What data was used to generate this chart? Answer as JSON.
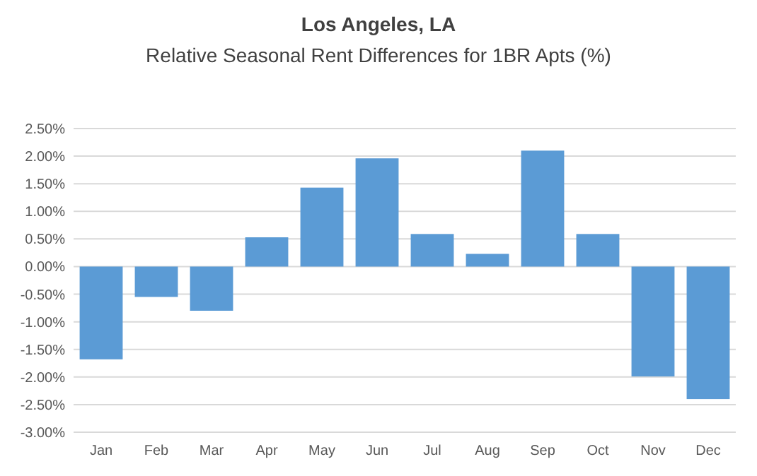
{
  "chart_data": {
    "type": "bar",
    "title": "Los Angeles, LA",
    "subtitle": "Relative Seasonal Rent Differences for 1BR Apts (%)",
    "categories": [
      "Jan",
      "Feb",
      "Mar",
      "Apr",
      "May",
      "Jun",
      "Jul",
      "Aug",
      "Sep",
      "Oct",
      "Nov",
      "Dec"
    ],
    "values": [
      -1.68,
      -0.55,
      -0.8,
      0.53,
      1.43,
      1.96,
      0.59,
      0.23,
      2.1,
      0.59,
      -1.99,
      -2.4
    ],
    "color": "#5b9bd5",
    "ylim": [
      -3,
      2.5
    ],
    "yticks": [
      {
        "value": -3,
        "label": "-3.00%"
      },
      {
        "value": -2.5,
        "label": "-2.50%"
      },
      {
        "value": -2,
        "label": "-2.00%"
      },
      {
        "value": -1.5,
        "label": "-1.50%"
      },
      {
        "value": -1,
        "label": "-1.00%"
      },
      {
        "value": -0.5,
        "label": "-0.50%"
      },
      {
        "value": 0,
        "label": "0.00%"
      },
      {
        "value": 0.5,
        "label": "0.50%"
      },
      {
        "value": 1,
        "label": "1.00%"
      },
      {
        "value": 1.5,
        "label": "1.50%"
      },
      {
        "value": 2,
        "label": "2.00%"
      },
      {
        "value": 2.5,
        "label": "2.50%"
      }
    ],
    "grid": "y"
  }
}
